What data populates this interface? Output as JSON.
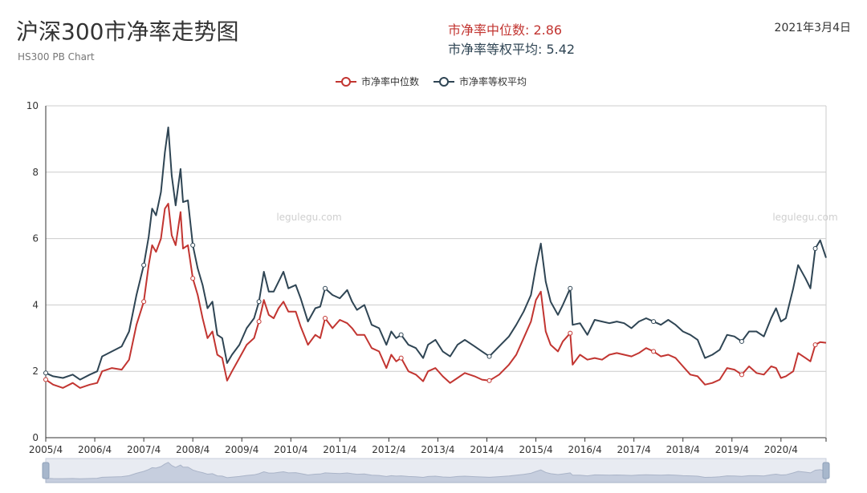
{
  "header": {
    "title": "沪深300市净率走势图",
    "subtitle": "HS300 PB Chart",
    "median_label": "市净率中位数: 2.86",
    "avg_label": "市净率等权平均: 5.42",
    "date": "2021年3月4日"
  },
  "watermark": "legulegu.com",
  "colors": {
    "median": "#c23531",
    "avg": "#2f4554",
    "grid": "#cccccc",
    "axis": "#333333"
  },
  "chart_data": {
    "type": "line",
    "title": "沪深300市净率走势图",
    "subtitle": "HS300 PB Chart",
    "xlabel": "",
    "ylabel": "",
    "ylim": [
      0,
      10
    ],
    "yticks": [
      0,
      2,
      4,
      6,
      8,
      10
    ],
    "xlim": [
      2005.25,
      2021.17
    ],
    "xticks": [
      {
        "x": 2005.25,
        "label": "2005/4"
      },
      {
        "x": 2006.25,
        "label": "2006/4"
      },
      {
        "x": 2007.25,
        "label": "2007/4"
      },
      {
        "x": 2008.25,
        "label": "2008/4"
      },
      {
        "x": 2009.25,
        "label": "2009/4"
      },
      {
        "x": 2010.25,
        "label": "2010/4"
      },
      {
        "x": 2011.25,
        "label": "2011/4"
      },
      {
        "x": 2012.25,
        "label": "2012/4"
      },
      {
        "x": 2013.25,
        "label": "2013/4"
      },
      {
        "x": 2014.25,
        "label": "2014/4"
      },
      {
        "x": 2015.25,
        "label": "2015/4"
      },
      {
        "x": 2016.25,
        "label": "2016/4"
      },
      {
        "x": 2017.25,
        "label": "2017/4"
      },
      {
        "x": 2018.25,
        "label": "2018/4"
      },
      {
        "x": 2019.25,
        "label": "2019/4"
      },
      {
        "x": 2020.25,
        "label": "2020/4"
      }
    ],
    "legend": [
      "市净率中位数",
      "市净率等权平均"
    ],
    "series": [
      {
        "name": "市净率中位数",
        "color": "#c23531",
        "points": [
          [
            2005.25,
            1.75
          ],
          [
            2005.4,
            1.6
          ],
          [
            2005.6,
            1.5
          ],
          [
            2005.8,
            1.65
          ],
          [
            2005.95,
            1.5
          ],
          [
            2006.15,
            1.6
          ],
          [
            2006.3,
            1.65
          ],
          [
            2006.4,
            2.0
          ],
          [
            2006.6,
            2.1
          ],
          [
            2006.8,
            2.05
          ],
          [
            2006.95,
            2.35
          ],
          [
            2007.1,
            3.4
          ],
          [
            2007.25,
            4.1
          ],
          [
            2007.35,
            5.2
          ],
          [
            2007.42,
            5.8
          ],
          [
            2007.5,
            5.6
          ],
          [
            2007.6,
            6.0
          ],
          [
            2007.68,
            6.9
          ],
          [
            2007.75,
            7.05
          ],
          [
            2007.82,
            6.1
          ],
          [
            2007.9,
            5.8
          ],
          [
            2008.0,
            6.8
          ],
          [
            2008.05,
            5.7
          ],
          [
            2008.15,
            5.8
          ],
          [
            2008.25,
            4.8
          ],
          [
            2008.35,
            4.3
          ],
          [
            2008.45,
            3.6
          ],
          [
            2008.55,
            3.0
          ],
          [
            2008.65,
            3.2
          ],
          [
            2008.75,
            2.5
          ],
          [
            2008.85,
            2.4
          ],
          [
            2008.95,
            1.72
          ],
          [
            2009.05,
            2.0
          ],
          [
            2009.2,
            2.4
          ],
          [
            2009.35,
            2.8
          ],
          [
            2009.5,
            3.0
          ],
          [
            2009.6,
            3.5
          ],
          [
            2009.7,
            4.15
          ],
          [
            2009.8,
            3.7
          ],
          [
            2009.9,
            3.6
          ],
          [
            2010.0,
            3.9
          ],
          [
            2010.1,
            4.1
          ],
          [
            2010.2,
            3.8
          ],
          [
            2010.35,
            3.8
          ],
          [
            2010.45,
            3.35
          ],
          [
            2010.6,
            2.8
          ],
          [
            2010.75,
            3.1
          ],
          [
            2010.85,
            3.0
          ],
          [
            2010.95,
            3.6
          ],
          [
            2011.1,
            3.3
          ],
          [
            2011.25,
            3.55
          ],
          [
            2011.4,
            3.45
          ],
          [
            2011.5,
            3.3
          ],
          [
            2011.6,
            3.1
          ],
          [
            2011.75,
            3.1
          ],
          [
            2011.9,
            2.7
          ],
          [
            2012.05,
            2.6
          ],
          [
            2012.2,
            2.1
          ],
          [
            2012.3,
            2.5
          ],
          [
            2012.4,
            2.3
          ],
          [
            2012.5,
            2.4
          ],
          [
            2012.65,
            2.0
          ],
          [
            2012.8,
            1.9
          ],
          [
            2012.95,
            1.7
          ],
          [
            2013.05,
            2.0
          ],
          [
            2013.2,
            2.1
          ],
          [
            2013.35,
            1.85
          ],
          [
            2013.5,
            1.65
          ],
          [
            2013.65,
            1.8
          ],
          [
            2013.8,
            1.95
          ],
          [
            2014.0,
            1.85
          ],
          [
            2014.15,
            1.75
          ],
          [
            2014.3,
            1.72
          ],
          [
            2014.5,
            1.9
          ],
          [
            2014.7,
            2.2
          ],
          [
            2014.85,
            2.5
          ],
          [
            2015.0,
            3.0
          ],
          [
            2015.15,
            3.5
          ],
          [
            2015.25,
            4.15
          ],
          [
            2015.35,
            4.4
          ],
          [
            2015.45,
            3.2
          ],
          [
            2015.55,
            2.8
          ],
          [
            2015.7,
            2.6
          ],
          [
            2015.8,
            2.9
          ],
          [
            2015.95,
            3.15
          ],
          [
            2016.0,
            2.2
          ],
          [
            2016.15,
            2.5
          ],
          [
            2016.3,
            2.35
          ],
          [
            2016.45,
            2.4
          ],
          [
            2016.6,
            2.35
          ],
          [
            2016.75,
            2.5
          ],
          [
            2016.9,
            2.55
          ],
          [
            2017.05,
            2.5
          ],
          [
            2017.2,
            2.45
          ],
          [
            2017.35,
            2.55
          ],
          [
            2017.5,
            2.7
          ],
          [
            2017.65,
            2.6
          ],
          [
            2017.8,
            2.45
          ],
          [
            2017.95,
            2.5
          ],
          [
            2018.1,
            2.4
          ],
          [
            2018.25,
            2.15
          ],
          [
            2018.4,
            1.9
          ],
          [
            2018.55,
            1.85
          ],
          [
            2018.7,
            1.6
          ],
          [
            2018.85,
            1.65
          ],
          [
            2019.0,
            1.75
          ],
          [
            2019.15,
            2.1
          ],
          [
            2019.3,
            2.05
          ],
          [
            2019.45,
            1.9
          ],
          [
            2019.6,
            2.15
          ],
          [
            2019.75,
            1.95
          ],
          [
            2019.9,
            1.9
          ],
          [
            2020.05,
            2.15
          ],
          [
            2020.15,
            2.1
          ],
          [
            2020.25,
            1.8
          ],
          [
            2020.35,
            1.85
          ],
          [
            2020.5,
            2.0
          ],
          [
            2020.6,
            2.55
          ],
          [
            2020.75,
            2.4
          ],
          [
            2020.85,
            2.3
          ],
          [
            2020.95,
            2.8
          ],
          [
            2021.05,
            2.88
          ],
          [
            2021.17,
            2.86
          ]
        ]
      },
      {
        "name": "市净率等权平均",
        "color": "#2f4554",
        "points": [
          [
            2005.25,
            1.95
          ],
          [
            2005.4,
            1.85
          ],
          [
            2005.6,
            1.8
          ],
          [
            2005.8,
            1.9
          ],
          [
            2005.95,
            1.75
          ],
          [
            2006.15,
            1.9
          ],
          [
            2006.3,
            2.0
          ],
          [
            2006.4,
            2.45
          ],
          [
            2006.6,
            2.6
          ],
          [
            2006.8,
            2.75
          ],
          [
            2006.95,
            3.2
          ],
          [
            2007.1,
            4.3
          ],
          [
            2007.25,
            5.2
          ],
          [
            2007.35,
            6.05
          ],
          [
            2007.42,
            6.9
          ],
          [
            2007.5,
            6.7
          ],
          [
            2007.6,
            7.4
          ],
          [
            2007.68,
            8.6
          ],
          [
            2007.75,
            9.35
          ],
          [
            2007.82,
            7.9
          ],
          [
            2007.9,
            7.0
          ],
          [
            2008.0,
            8.1
          ],
          [
            2008.05,
            7.1
          ],
          [
            2008.15,
            7.15
          ],
          [
            2008.25,
            5.8
          ],
          [
            2008.35,
            5.1
          ],
          [
            2008.45,
            4.6
          ],
          [
            2008.55,
            3.9
          ],
          [
            2008.65,
            4.1
          ],
          [
            2008.75,
            3.1
          ],
          [
            2008.85,
            3.0
          ],
          [
            2008.95,
            2.25
          ],
          [
            2009.05,
            2.5
          ],
          [
            2009.2,
            2.8
          ],
          [
            2009.35,
            3.3
          ],
          [
            2009.5,
            3.6
          ],
          [
            2009.6,
            4.1
          ],
          [
            2009.7,
            5.0
          ],
          [
            2009.8,
            4.4
          ],
          [
            2009.9,
            4.4
          ],
          [
            2010.0,
            4.7
          ],
          [
            2010.1,
            5.0
          ],
          [
            2010.2,
            4.5
          ],
          [
            2010.35,
            4.6
          ],
          [
            2010.45,
            4.2
          ],
          [
            2010.6,
            3.5
          ],
          [
            2010.75,
            3.9
          ],
          [
            2010.85,
            3.95
          ],
          [
            2010.95,
            4.5
          ],
          [
            2011.1,
            4.3
          ],
          [
            2011.25,
            4.2
          ],
          [
            2011.4,
            4.45
          ],
          [
            2011.5,
            4.1
          ],
          [
            2011.6,
            3.85
          ],
          [
            2011.75,
            4.0
          ],
          [
            2011.9,
            3.4
          ],
          [
            2012.05,
            3.3
          ],
          [
            2012.2,
            2.8
          ],
          [
            2012.3,
            3.2
          ],
          [
            2012.4,
            3.0
          ],
          [
            2012.5,
            3.1
          ],
          [
            2012.65,
            2.8
          ],
          [
            2012.8,
            2.7
          ],
          [
            2012.95,
            2.4
          ],
          [
            2013.05,
            2.8
          ],
          [
            2013.2,
            2.95
          ],
          [
            2013.35,
            2.6
          ],
          [
            2013.5,
            2.45
          ],
          [
            2013.65,
            2.8
          ],
          [
            2013.8,
            2.95
          ],
          [
            2014.0,
            2.75
          ],
          [
            2014.15,
            2.6
          ],
          [
            2014.3,
            2.45
          ],
          [
            2014.5,
            2.75
          ],
          [
            2014.7,
            3.05
          ],
          [
            2014.85,
            3.4
          ],
          [
            2015.0,
            3.8
          ],
          [
            2015.15,
            4.3
          ],
          [
            2015.25,
            5.15
          ],
          [
            2015.35,
            5.85
          ],
          [
            2015.45,
            4.7
          ],
          [
            2015.55,
            4.1
          ],
          [
            2015.7,
            3.7
          ],
          [
            2015.8,
            4.0
          ],
          [
            2015.95,
            4.5
          ],
          [
            2016.0,
            3.4
          ],
          [
            2016.15,
            3.45
          ],
          [
            2016.3,
            3.1
          ],
          [
            2016.45,
            3.55
          ],
          [
            2016.6,
            3.5
          ],
          [
            2016.75,
            3.45
          ],
          [
            2016.9,
            3.5
          ],
          [
            2017.05,
            3.45
          ],
          [
            2017.2,
            3.3
          ],
          [
            2017.35,
            3.5
          ],
          [
            2017.5,
            3.6
          ],
          [
            2017.65,
            3.5
          ],
          [
            2017.8,
            3.4
          ],
          [
            2017.95,
            3.55
          ],
          [
            2018.1,
            3.4
          ],
          [
            2018.25,
            3.2
          ],
          [
            2018.4,
            3.1
          ],
          [
            2018.55,
            2.95
          ],
          [
            2018.7,
            2.4
          ],
          [
            2018.85,
            2.5
          ],
          [
            2019.0,
            2.65
          ],
          [
            2019.15,
            3.1
          ],
          [
            2019.3,
            3.05
          ],
          [
            2019.45,
            2.9
          ],
          [
            2019.6,
            3.2
          ],
          [
            2019.75,
            3.2
          ],
          [
            2019.9,
            3.05
          ],
          [
            2020.05,
            3.6
          ],
          [
            2020.15,
            3.9
          ],
          [
            2020.25,
            3.5
          ],
          [
            2020.35,
            3.6
          ],
          [
            2020.5,
            4.5
          ],
          [
            2020.6,
            5.2
          ],
          [
            2020.75,
            4.8
          ],
          [
            2020.85,
            4.5
          ],
          [
            2020.95,
            5.7
          ],
          [
            2021.05,
            5.95
          ],
          [
            2021.17,
            5.42
          ]
        ]
      }
    ]
  }
}
